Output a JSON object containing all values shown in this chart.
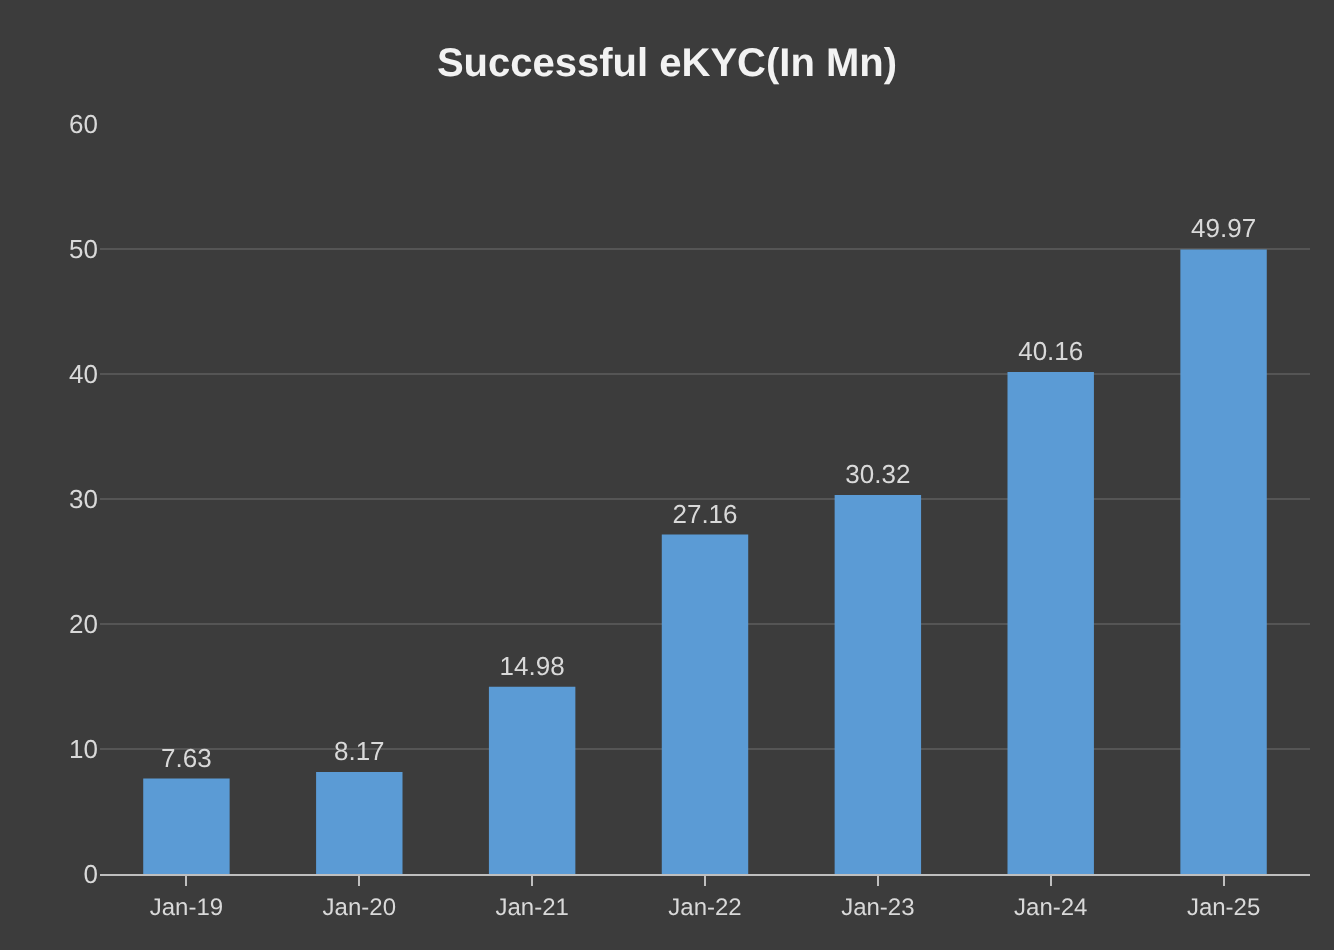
{
  "chart_data": {
    "type": "bar",
    "title": "Successful eKYC(In Mn)",
    "categories": [
      "Jan-19",
      "Jan-20",
      "Jan-21",
      "Jan-22",
      "Jan-23",
      "Jan-24",
      "Jan-25"
    ],
    "values": [
      7.63,
      8.17,
      14.98,
      27.16,
      30.32,
      40.16,
      49.97
    ],
    "color": "#5b9bd5",
    "ylim": [
      0,
      60
    ],
    "yticks": [
      0,
      10,
      20,
      30,
      40,
      50,
      60
    ],
    "grid": "y",
    "data_labels": true
  }
}
